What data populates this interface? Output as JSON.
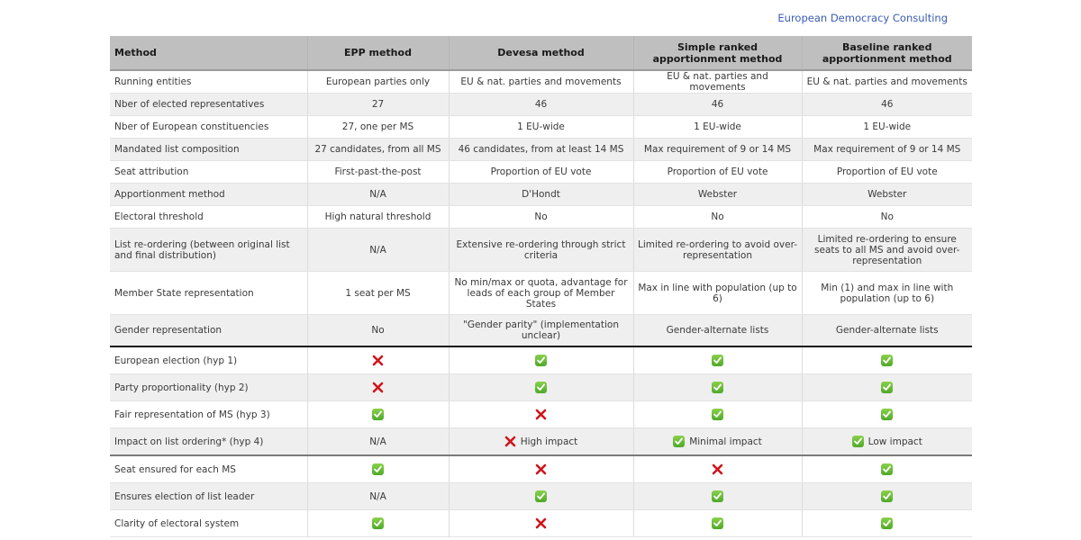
{
  "brand": "European Democracy Consulting",
  "colors": {
    "brand": "#3b5bb5",
    "header_bg": "#bfbfbf",
    "check": "#5db535",
    "cross": "#d0141c"
  },
  "table": {
    "headers": [
      "Method",
      "EPP method",
      "Devesa method",
      "Simple ranked apportionment method",
      "Baseline ranked apportionment method"
    ],
    "rows": [
      {
        "label": "Running entities",
        "cells": [
          {
            "text": "European parties only"
          },
          {
            "text": "EU & nat. parties and movements"
          },
          {
            "text": "EU & nat. parties and movements"
          },
          {
            "text": "EU & nat. parties and movements"
          }
        ]
      },
      {
        "label": "Nber of elected representatives",
        "cells": [
          {
            "text": "27"
          },
          {
            "text": "46"
          },
          {
            "text": "46"
          },
          {
            "text": "46"
          }
        ]
      },
      {
        "label": "Nber of European constituencies",
        "cells": [
          {
            "text": "27, one per MS"
          },
          {
            "text": "1 EU-wide"
          },
          {
            "text": "1 EU-wide"
          },
          {
            "text": "1 EU-wide"
          }
        ]
      },
      {
        "label": "Mandated list composition",
        "cells": [
          {
            "text": "27 candidates, from all MS"
          },
          {
            "text": "46 candidates, from at least 14 MS"
          },
          {
            "text": "Max requirement of 9 or 14 MS"
          },
          {
            "text": "Max requirement of 9 or 14 MS"
          }
        ]
      },
      {
        "label": "Seat attribution",
        "cells": [
          {
            "text": "First-past-the-post"
          },
          {
            "text": "Proportion of EU vote"
          },
          {
            "text": "Proportion of EU vote"
          },
          {
            "text": "Proportion of EU vote"
          }
        ]
      },
      {
        "label": "Apportionment method",
        "cells": [
          {
            "text": "N/A"
          },
          {
            "text": "D'Hondt"
          },
          {
            "text": "Webster"
          },
          {
            "text": "Webster"
          }
        ]
      },
      {
        "label": "Electoral threshold",
        "cells": [
          {
            "text": "High natural threshold"
          },
          {
            "text": "No"
          },
          {
            "text": "No"
          },
          {
            "text": "No"
          }
        ]
      },
      {
        "label": "List re-ordering (between original list and final distribution)",
        "cells": [
          {
            "text": "N/A"
          },
          {
            "text": "Extensive re-ordering through strict criteria"
          },
          {
            "text": "Limited re-ordering to avoid over-representation"
          },
          {
            "text": "Limited re-ordering to ensure seats to all MS and avoid over-representation"
          }
        ]
      },
      {
        "label": "Member State representation",
        "cells": [
          {
            "text": "1 seat per MS"
          },
          {
            "text": "No min/max or quota, advantage for leads of each group of Member States"
          },
          {
            "text": "Max in line with population (up to 6)"
          },
          {
            "text": "Min (1) and max in line with population (up to 6)"
          }
        ]
      },
      {
        "label": "Gender representation",
        "cells": [
          {
            "text": "No"
          },
          {
            "text": "\"Gender parity\" (implementation unclear)"
          },
          {
            "text": "Gender-alternate lists"
          },
          {
            "text": "Gender-alternate lists"
          }
        ]
      },
      {
        "label": "European election (hyp 1)",
        "cells": [
          {
            "icon": "cross"
          },
          {
            "icon": "check"
          },
          {
            "icon": "check"
          },
          {
            "icon": "check"
          }
        ]
      },
      {
        "label": "Party proportionality (hyp 2)",
        "cells": [
          {
            "icon": "cross"
          },
          {
            "icon": "check"
          },
          {
            "icon": "check"
          },
          {
            "icon": "check"
          }
        ]
      },
      {
        "label": "Fair representation of MS (hyp 3)",
        "cells": [
          {
            "icon": "check"
          },
          {
            "icon": "cross"
          },
          {
            "icon": "check"
          },
          {
            "icon": "check"
          }
        ]
      },
      {
        "label": "Impact on list ordering* (hyp 4)",
        "cells": [
          {
            "text": "N/A"
          },
          {
            "icon": "cross",
            "text": "High impact"
          },
          {
            "icon": "check",
            "text": "Minimal impact"
          },
          {
            "icon": "check",
            "text": "Low impact"
          }
        ]
      },
      {
        "label": "Seat ensured for each MS",
        "cells": [
          {
            "icon": "check"
          },
          {
            "icon": "cross"
          },
          {
            "icon": "cross"
          },
          {
            "icon": "check"
          }
        ]
      },
      {
        "label": "Ensures election of list leader",
        "cells": [
          {
            "text": "N/A"
          },
          {
            "icon": "check"
          },
          {
            "icon": "check"
          },
          {
            "icon": "check"
          }
        ]
      },
      {
        "label": "Clarity of electoral system",
        "cells": [
          {
            "icon": "check"
          },
          {
            "icon": "cross"
          },
          {
            "icon": "check"
          },
          {
            "icon": "check"
          }
        ]
      }
    ]
  }
}
